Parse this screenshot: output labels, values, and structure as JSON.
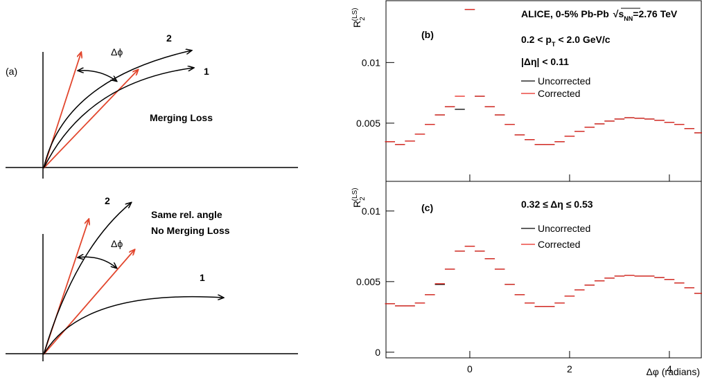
{
  "diagram": {
    "panel_label": "(a)",
    "top": {
      "angle_label": "Δϕ",
      "curve_labels": [
        "2",
        "1"
      ],
      "caption": [
        "Merging Loss"
      ]
    },
    "bottom": {
      "angle_label": "Δϕ",
      "curve_labels": [
        "2",
        "1"
      ],
      "caption": [
        "Same rel. angle",
        "No Merging Loss"
      ]
    }
  },
  "chart_data": [
    {
      "type": "scatter",
      "panel_label": "(b)",
      "ylabel": {
        "base": "R",
        "sub": "2",
        "sup": "(LS)"
      },
      "annotations": {
        "header": {
          "text": "ALICE, 0-5% Pb-Pb",
          "root": "√",
          "s": "s",
          "sub": "NN",
          "tail": "=2.76 TeV"
        },
        "pt": {
          "a": "0.2 < p",
          "sub": "T",
          "b": "< 2.0 GeV/c"
        },
        "eta": "|Δη| < 0.11"
      },
      "x": [
        -1.6,
        -1.4,
        -1.2,
        -1,
        -0.8,
        -0.6,
        -0.4,
        -0.2,
        0,
        0.2,
        0.4,
        0.6,
        0.8,
        1,
        1.2,
        1.4,
        1.6,
        1.8,
        2,
        2.2,
        2.4,
        2.6,
        2.8,
        3,
        3.2,
        3.4,
        3.6,
        3.8,
        4,
        4.2,
        4.4,
        4.6
      ],
      "xlim": [
        -1.68,
        4.64
      ],
      "ylim": [
        0.0002,
        0.0151
      ],
      "yticks": [
        0.005,
        0.01
      ],
      "series": [
        {
          "name": "Uncorrected",
          "color": "#000000",
          "values": [
            0.00347,
            0.00324,
            0.00352,
            0.00409,
            0.00489,
            0.00568,
            0.00636,
            0.00614,
            0.01438,
            0.00722,
            0.00636,
            0.00568,
            0.00489,
            0.00403,
            0.00364,
            0.00324,
            0.00324,
            0.00347,
            0.00392,
            0.00432,
            0.00466,
            0.00494,
            0.00517,
            0.00534,
            0.00545,
            0.0054,
            0.00534,
            0.00523,
            0.00506,
            0.00489,
            0.00455,
            0.0042
          ]
        },
        {
          "name": "Corrected",
          "color": "#e8261e",
          "values": [
            0.00347,
            0.00324,
            0.00352,
            0.00409,
            0.00489,
            0.00568,
            0.00636,
            0.00722,
            0.01438,
            0.00722,
            0.00636,
            0.00568,
            0.00489,
            0.00403,
            0.00364,
            0.00324,
            0.00324,
            0.00347,
            0.00392,
            0.00432,
            0.00466,
            0.00494,
            0.00517,
            0.00534,
            0.00545,
            0.0054,
            0.00534,
            0.00523,
            0.00506,
            0.00489,
            0.00455,
            0.0042
          ]
        }
      ]
    },
    {
      "type": "scatter",
      "panel_label": "(c)",
      "ylabel": {
        "base": "R",
        "sub": "2",
        "sup": "(LS)"
      },
      "annotations": {
        "eta": "0.32 ≤ Δη  ≤ 0.53"
      },
      "xlabel": "Δφ (radians)",
      "x": [
        -1.6,
        -1.4,
        -1.2,
        -1,
        -0.8,
        -0.6,
        -0.4,
        -0.2,
        0,
        0.2,
        0.4,
        0.6,
        0.8,
        1,
        1.2,
        1.4,
        1.6,
        1.8,
        2,
        2.2,
        2.4,
        2.6,
        2.8,
        3,
        3.2,
        3.4,
        3.6,
        3.8,
        4,
        4.2,
        4.4,
        4.6
      ],
      "xlim": [
        -1.68,
        4.64
      ],
      "xticks": [
        0,
        2,
        4
      ],
      "ylim": [
        -0.0004,
        0.0121
      ],
      "yticks": [
        0,
        0.005,
        0.01
      ],
      "series": [
        {
          "name": "Uncorrected",
          "color": "#000000",
          "values": [
            0.00343,
            0.00328,
            0.00328,
            0.00348,
            0.00407,
            0.0048,
            0.00588,
            0.00716,
            0.0075,
            0.00716,
            0.00662,
            0.00588,
            0.0048,
            0.00407,
            0.00348,
            0.00324,
            0.00324,
            0.00348,
            0.00397,
            0.00441,
            0.00475,
            0.00505,
            0.00525,
            0.00539,
            0.00544,
            0.00539,
            0.00539,
            0.00529,
            0.00515,
            0.0049,
            0.00456,
            0.00417
          ]
        },
        {
          "name": "Corrected",
          "color": "#e8261e",
          "values": [
            0.00343,
            0.00328,
            0.00328,
            0.00348,
            0.00407,
            0.00485,
            0.00588,
            0.00716,
            0.0075,
            0.00716,
            0.00662,
            0.00588,
            0.0048,
            0.00407,
            0.00348,
            0.00324,
            0.00324,
            0.00348,
            0.00397,
            0.00441,
            0.00475,
            0.00505,
            0.00525,
            0.00539,
            0.00544,
            0.00539,
            0.00539,
            0.00529,
            0.00515,
            0.0049,
            0.00456,
            0.00417
          ]
        }
      ]
    }
  ]
}
